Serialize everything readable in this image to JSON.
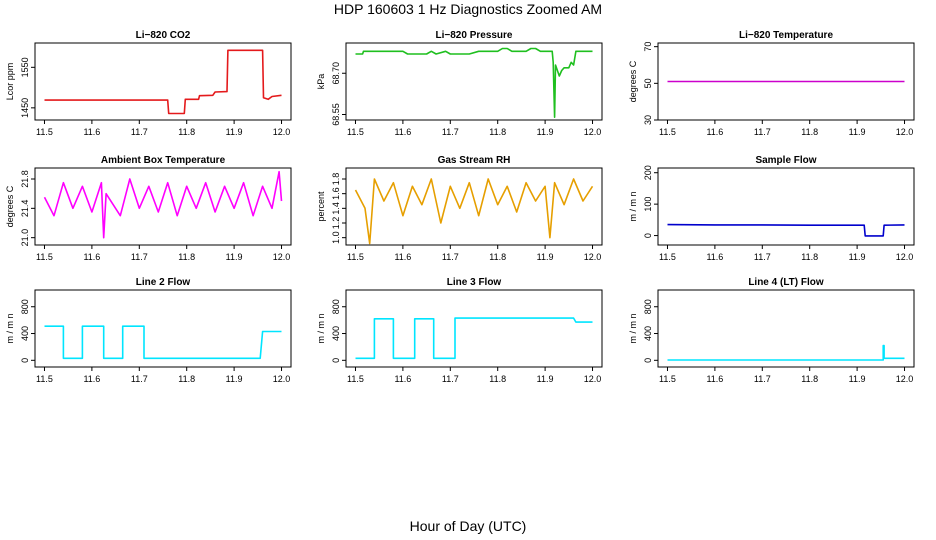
{
  "figure": {
    "title": "HDP  160603  1 Hz Diagnostics Zoomed AM",
    "xlabel": "Hour of Day (UTC)"
  },
  "chart_data": [
    {
      "type": "line",
      "title": "Li−820 CO2",
      "ylabel": "Lcor ppm",
      "color": "#e41a1c",
      "xlim": [
        11.5,
        12.0
      ],
      "xticks": [
        "11.5",
        "11.6",
        "11.7",
        "11.8",
        "11.9",
        "12.0"
      ],
      "ylim": [
        1420,
        1610
      ],
      "yticks": [
        1450,
        1550
      ],
      "series": [
        {
          "x": [
            11.5,
            11.76,
            11.762,
            11.795,
            11.797,
            11.825,
            11.827,
            11.855,
            11.86,
            11.885,
            11.887,
            11.96,
            11.962,
            11.972,
            11.98,
            12.0
          ],
          "y": [
            1469,
            1469,
            1436,
            1436,
            1471,
            1471,
            1480,
            1481,
            1489,
            1490,
            1592,
            1592,
            1475,
            1471,
            1478,
            1481
          ]
        }
      ]
    },
    {
      "type": "line",
      "title": "Li−820 Pressure",
      "ylabel": "kPa",
      "color": "#1fbf1f",
      "xlim": [
        11.5,
        12.0
      ],
      "xticks": [
        "11.5",
        "11.6",
        "11.7",
        "11.8",
        "11.9",
        "12.0"
      ],
      "ylim": [
        68.53,
        68.81
      ],
      "yticks": [
        "68.55",
        "68.70"
      ],
      "series": [
        {
          "x": [
            11.5,
            11.515,
            11.517,
            11.53,
            11.56,
            11.6,
            11.61,
            11.62,
            11.65,
            11.66,
            11.67,
            11.69,
            11.7,
            11.74,
            11.76,
            11.77,
            11.8,
            11.81,
            11.82,
            11.83,
            11.86,
            11.87,
            11.88,
            11.89,
            11.9,
            11.915,
            11.917,
            11.92,
            11.922,
            11.93,
            11.935,
            11.94,
            11.95,
            11.955,
            11.96,
            11.965,
            11.99,
            12.0
          ],
          "y": [
            68.77,
            68.77,
            68.78,
            68.78,
            68.78,
            68.78,
            68.77,
            68.77,
            68.77,
            68.78,
            68.77,
            68.78,
            68.77,
            68.77,
            68.78,
            68.78,
            68.78,
            68.79,
            68.79,
            68.78,
            68.78,
            68.79,
            68.79,
            68.78,
            68.78,
            68.78,
            68.74,
            68.54,
            68.73,
            68.69,
            68.71,
            68.72,
            68.72,
            68.74,
            68.73,
            68.78,
            68.78,
            68.78
          ]
        }
      ]
    },
    {
      "type": "line",
      "title": "Li−820 Temperature",
      "ylabel": "degrees C",
      "color": "#cc00cc",
      "xlim": [
        11.5,
        12.0
      ],
      "xticks": [
        "11.5",
        "11.6",
        "11.7",
        "11.8",
        "11.9",
        "12.0"
      ],
      "ylim": [
        30,
        72
      ],
      "yticks": [
        30,
        50,
        70
      ],
      "series": [
        {
          "x": [
            11.5,
            12.0
          ],
          "y": [
            51,
            51
          ]
        }
      ]
    },
    {
      "type": "line",
      "title": "Ambient Box Temperature",
      "ylabel": "degrees C",
      "color": "#ff00ff",
      "xlim": [
        11.5,
        12.0
      ],
      "xticks": [
        "11.5",
        "11.6",
        "11.7",
        "11.8",
        "11.9",
        "12.0"
      ],
      "ylim": [
        20.9,
        21.95
      ],
      "yticks": [
        "21.0",
        "21.4",
        "21.8"
      ],
      "series": [
        {
          "x": [
            11.5,
            11.52,
            11.54,
            11.56,
            11.58,
            11.6,
            11.62,
            11.625,
            11.63,
            11.66,
            11.68,
            11.7,
            11.72,
            11.74,
            11.76,
            11.78,
            11.8,
            11.82,
            11.84,
            11.86,
            11.88,
            11.9,
            11.92,
            11.94,
            11.96,
            11.98,
            11.995,
            12.0
          ],
          "y": [
            21.55,
            21.3,
            21.75,
            21.4,
            21.7,
            21.35,
            21.75,
            21.0,
            21.6,
            21.3,
            21.8,
            21.4,
            21.7,
            21.35,
            21.75,
            21.3,
            21.7,
            21.4,
            21.75,
            21.35,
            21.7,
            21.4,
            21.75,
            21.3,
            21.7,
            21.4,
            21.9,
            21.5
          ]
        }
      ]
    },
    {
      "type": "line",
      "title": "Gas Stream RH",
      "ylabel": "percent",
      "color": "#e69f00",
      "xlim": [
        11.5,
        12.0
      ],
      "xticks": [
        "11.5",
        "11.6",
        "11.7",
        "11.8",
        "11.9",
        "12.0"
      ],
      "ylim": [
        0.9,
        1.95
      ],
      "yticks": [
        "1.0",
        "1.2",
        "1.4",
        "1.6",
        "1.8"
      ],
      "series": [
        {
          "x": [
            11.5,
            11.52,
            11.53,
            11.54,
            11.56,
            11.58,
            11.6,
            11.62,
            11.64,
            11.66,
            11.68,
            11.7,
            11.72,
            11.74,
            11.76,
            11.78,
            11.8,
            11.82,
            11.84,
            11.86,
            11.88,
            11.9,
            11.91,
            11.92,
            11.94,
            11.96,
            11.98,
            12.0
          ],
          "y": [
            1.65,
            1.4,
            0.92,
            1.8,
            1.5,
            1.75,
            1.3,
            1.7,
            1.45,
            1.8,
            1.2,
            1.7,
            1.4,
            1.75,
            1.3,
            1.8,
            1.45,
            1.7,
            1.35,
            1.75,
            1.5,
            1.7,
            1.0,
            1.75,
            1.45,
            1.8,
            1.5,
            1.7
          ]
        }
      ]
    },
    {
      "type": "line",
      "title": "Sample Flow",
      "ylabel": "m / m n",
      "color": "#0000cc",
      "xlim": [
        11.5,
        12.0
      ],
      "xticks": [
        "11.5",
        "11.6",
        "11.7",
        "11.8",
        "11.9",
        "12.0"
      ],
      "ylim": [
        -30,
        215
      ],
      "yticks": [
        0,
        100,
        200
      ],
      "series": [
        {
          "x": [
            11.5,
            11.6,
            11.7,
            11.8,
            11.9,
            11.915,
            11.917,
            11.955,
            11.957,
            12.0
          ],
          "y": [
            35,
            34,
            34,
            33,
            33,
            33,
            -1,
            -1,
            33,
            34
          ]
        }
      ]
    },
    {
      "type": "line",
      "title": "Line 2 Flow",
      "ylabel": "m / m n",
      "color": "#00e5ff",
      "xlim": [
        11.5,
        12.0
      ],
      "xticks": [
        "11.5",
        "11.6",
        "11.7",
        "11.8",
        "11.9",
        "12.0"
      ],
      "ylim": [
        -100,
        1050
      ],
      "yticks": [
        0,
        400,
        800
      ],
      "series": [
        {
          "x": [
            11.5,
            11.54,
            11.54,
            11.58,
            11.58,
            11.625,
            11.625,
            11.665,
            11.665,
            11.71,
            11.71,
            11.955,
            11.96,
            12.0
          ],
          "y": [
            510,
            510,
            30,
            30,
            510,
            510,
            30,
            30,
            510,
            510,
            30,
            30,
            430,
            430
          ]
        }
      ]
    },
    {
      "type": "line",
      "title": "Line 3 Flow",
      "ylabel": "m / m n",
      "color": "#00e5ff",
      "xlim": [
        11.5,
        12.0
      ],
      "xticks": [
        "11.5",
        "11.6",
        "11.7",
        "11.8",
        "11.9",
        "12.0"
      ],
      "ylim": [
        -100,
        1050
      ],
      "yticks": [
        0,
        400,
        800
      ],
      "series": [
        {
          "x": [
            11.5,
            11.54,
            11.54,
            11.58,
            11.58,
            11.625,
            11.625,
            11.665,
            11.665,
            11.71,
            11.71,
            11.96,
            11.965,
            12.0
          ],
          "y": [
            30,
            30,
            620,
            620,
            30,
            30,
            620,
            620,
            30,
            30,
            630,
            630,
            570,
            570
          ]
        }
      ]
    },
    {
      "type": "line",
      "title": "Line 4 (LT) Flow",
      "ylabel": "m / m n",
      "color": "#00e5ff",
      "xlim": [
        11.5,
        12.0
      ],
      "xticks": [
        "11.5",
        "11.6",
        "11.7",
        "11.8",
        "11.9",
        "12.0"
      ],
      "ylim": [
        -100,
        1050
      ],
      "yticks": [
        0,
        400,
        800
      ],
      "series": [
        {
          "x": [
            11.5,
            11.955,
            11.955,
            11.957,
            11.957,
            12.0
          ],
          "y": [
            5,
            5,
            220,
            220,
            30,
            30
          ]
        }
      ]
    }
  ]
}
